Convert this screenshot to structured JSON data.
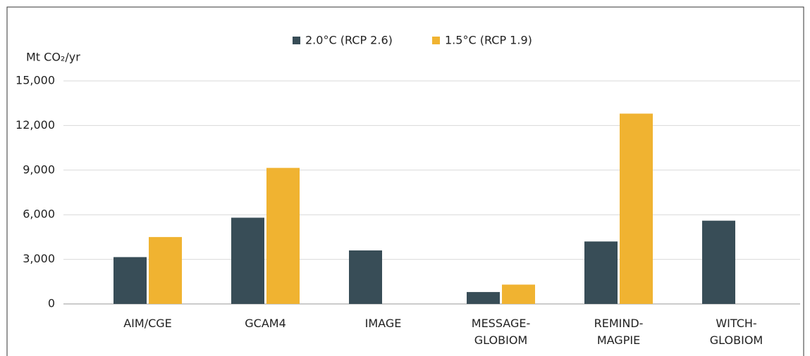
{
  "chart_data": {
    "type": "bar",
    "y_label": "Mt CO₂/yr",
    "categories": [
      [
        "AIM/CGE"
      ],
      [
        "GCAM4"
      ],
      [
        "IMAGE"
      ],
      [
        "MESSAGE-",
        "GLOBIOM"
      ],
      [
        "REMIND-",
        "MAGPIE"
      ],
      [
        "WITCH-",
        "GLOBIOM"
      ]
    ],
    "series": [
      {
        "name": "2.0°C (RCP 2.6)",
        "color": "#384d57",
        "values": [
          3150,
          5800,
          3600,
          800,
          4200,
          5600
        ]
      },
      {
        "name": "1.5°C (RCP 1.9)",
        "color": "#f0b331",
        "values": [
          4500,
          9150,
          null,
          1300,
          12800,
          null
        ]
      }
    ],
    "ylim": [
      0,
      15000
    ],
    "yticks": [
      0,
      {
        "value": 3000,
        "label": "3,000"
      },
      {
        "value": 6000,
        "label": "6,000"
      },
      {
        "value": 9000,
        "label": "9,000"
      },
      {
        "value": 12000,
        "label": "12,000"
      },
      {
        "value": 15000,
        "label": "15,000"
      }
    ],
    "grid": true,
    "legend": "top"
  }
}
